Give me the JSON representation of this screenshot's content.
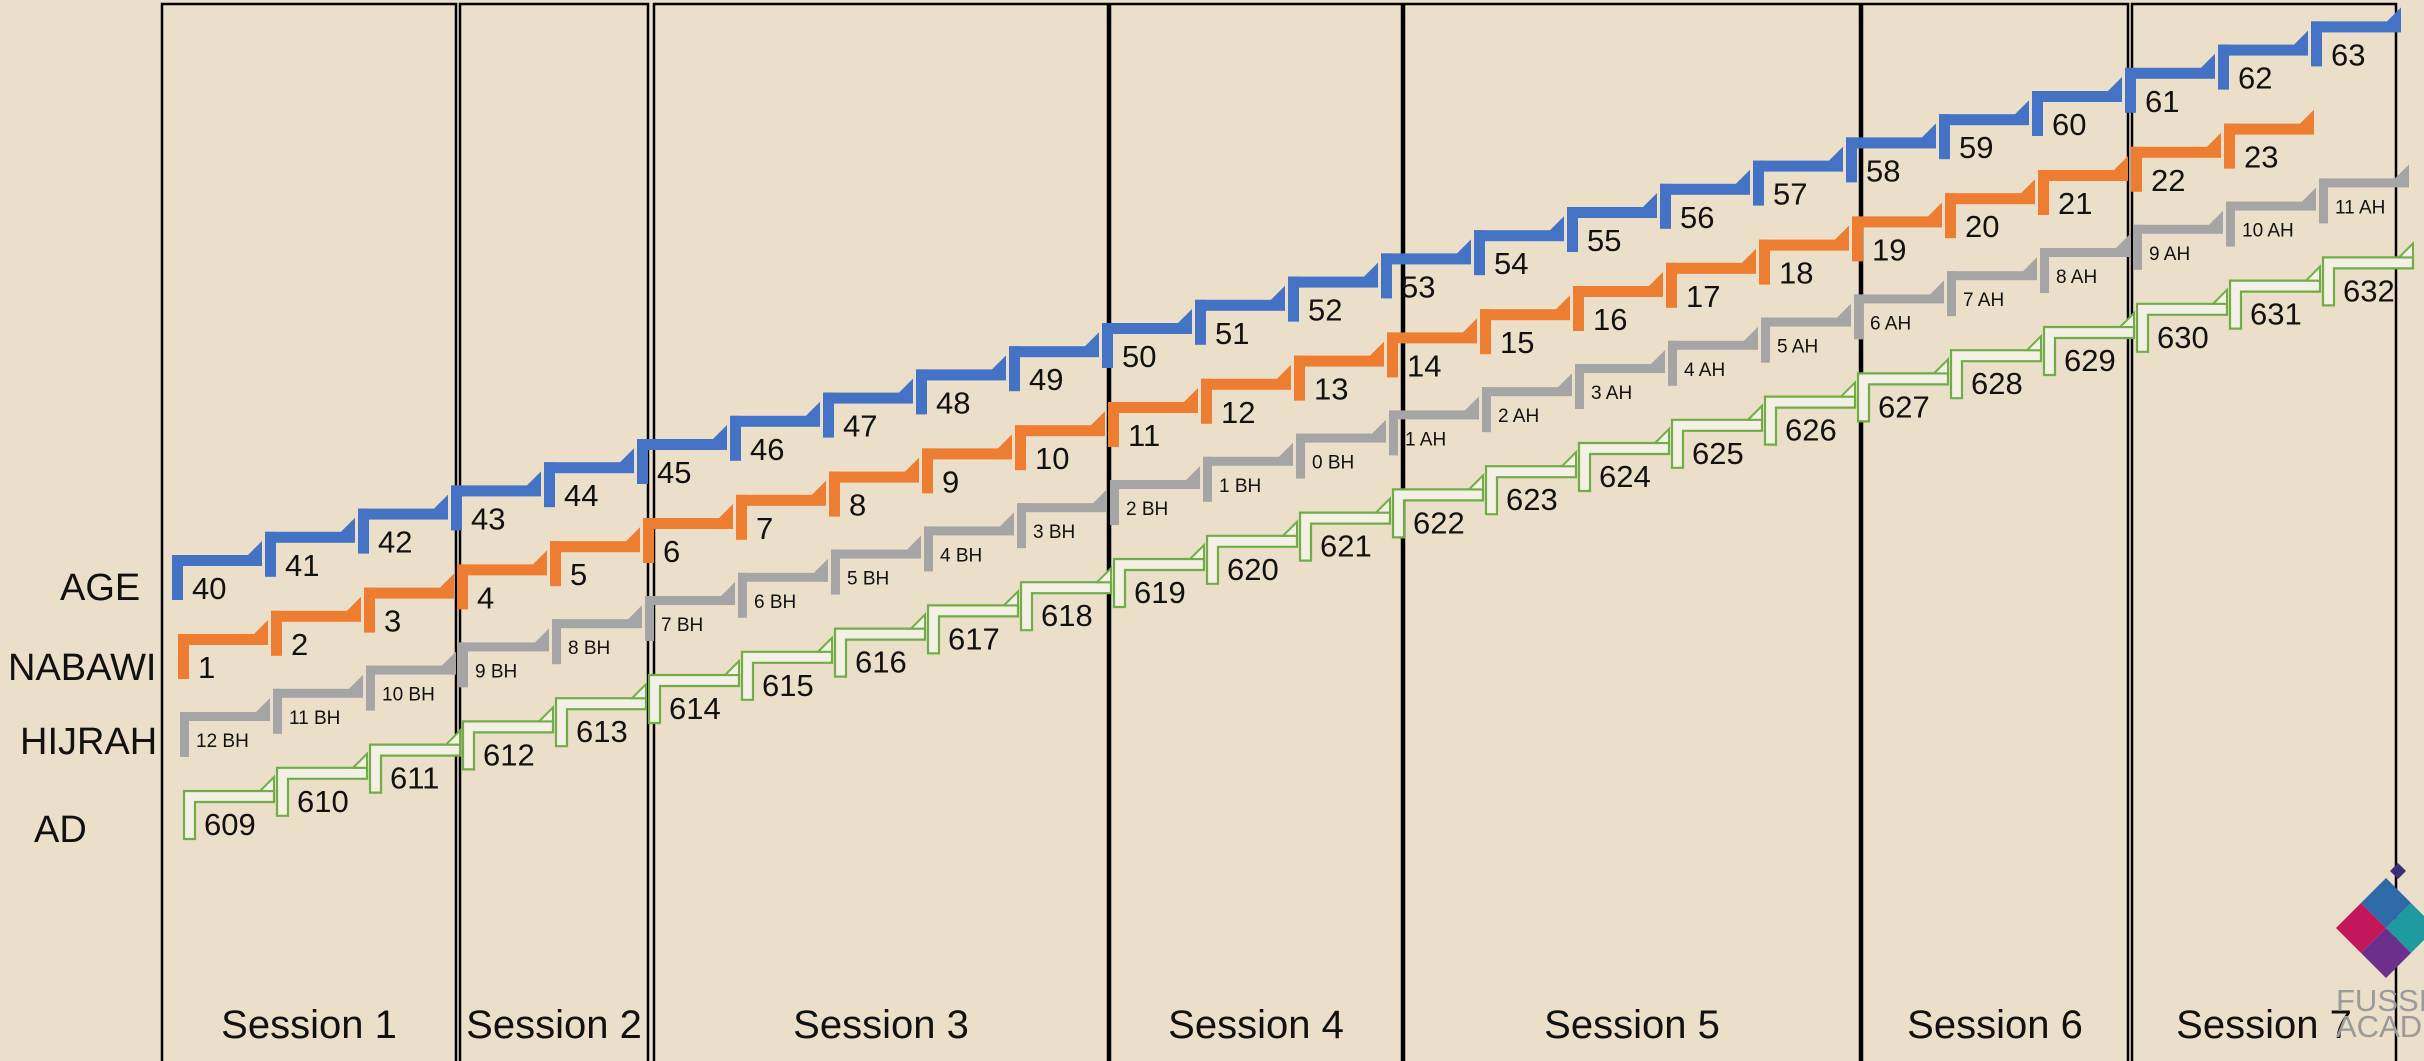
{
  "row_labels": [
    "AGE",
    "NABAWI",
    "HIJRAH",
    "AD"
  ],
  "sessions": [
    "Session 1",
    "Session 2",
    "Session 3",
    "Session 4",
    "Session 5",
    "Session 6",
    "Session 7"
  ],
  "rows": [
    {
      "key": "age",
      "color": "#4472c4",
      "style": "solid",
      "size": "large",
      "values": [
        "40",
        "41",
        "42",
        "43",
        "44",
        "45",
        "46",
        "47",
        "48",
        "49",
        "50",
        "51",
        "52",
        "53",
        "54",
        "55",
        "56",
        "57",
        "58",
        "59",
        "60",
        "61",
        "62",
        "63"
      ]
    },
    {
      "key": "nabawi",
      "color": "#ed7d31",
      "style": "solid",
      "size": "large",
      "values": [
        "1",
        "2",
        "3",
        "4",
        "5",
        "6",
        "7",
        "8",
        "9",
        "10",
        "11",
        "12",
        "13",
        "14",
        "15",
        "16",
        "17",
        "18",
        "19",
        "20",
        "21",
        "22",
        "23"
      ]
    },
    {
      "key": "hijrah",
      "color": "#a5a5a5",
      "style": "solid",
      "size": "small",
      "values": [
        "12 BH",
        "11 BH",
        "10 BH",
        "9 BH",
        "8 BH",
        "7 BH",
        "6 BH",
        "5 BH",
        "4 BH",
        "3 BH",
        "2 BH",
        "1 BH",
        "0 BH",
        "1 AH",
        "2 AH",
        "3 AH",
        "4 AH",
        "5 AH",
        "6 AH",
        "7 AH",
        "8 AH",
        "9 AH",
        "10 AH",
        "11 AH"
      ]
    },
    {
      "key": "ad",
      "color": "#70ad47",
      "style": "outline",
      "size": "large",
      "values": [
        "609",
        "610",
        "611",
        "612",
        "613",
        "614",
        "615",
        "616",
        "617",
        "618",
        "619",
        "620",
        "621",
        "622",
        "623",
        "624",
        "625",
        "626",
        "627",
        "628",
        "629",
        "630",
        "631",
        "632"
      ]
    }
  ],
  "logo": {
    "text": "FUSSI\nACADE",
    "colors": [
      "#6b2f8c",
      "#2e6aa8",
      "#c2185b",
      "#1f9aa0"
    ]
  }
}
